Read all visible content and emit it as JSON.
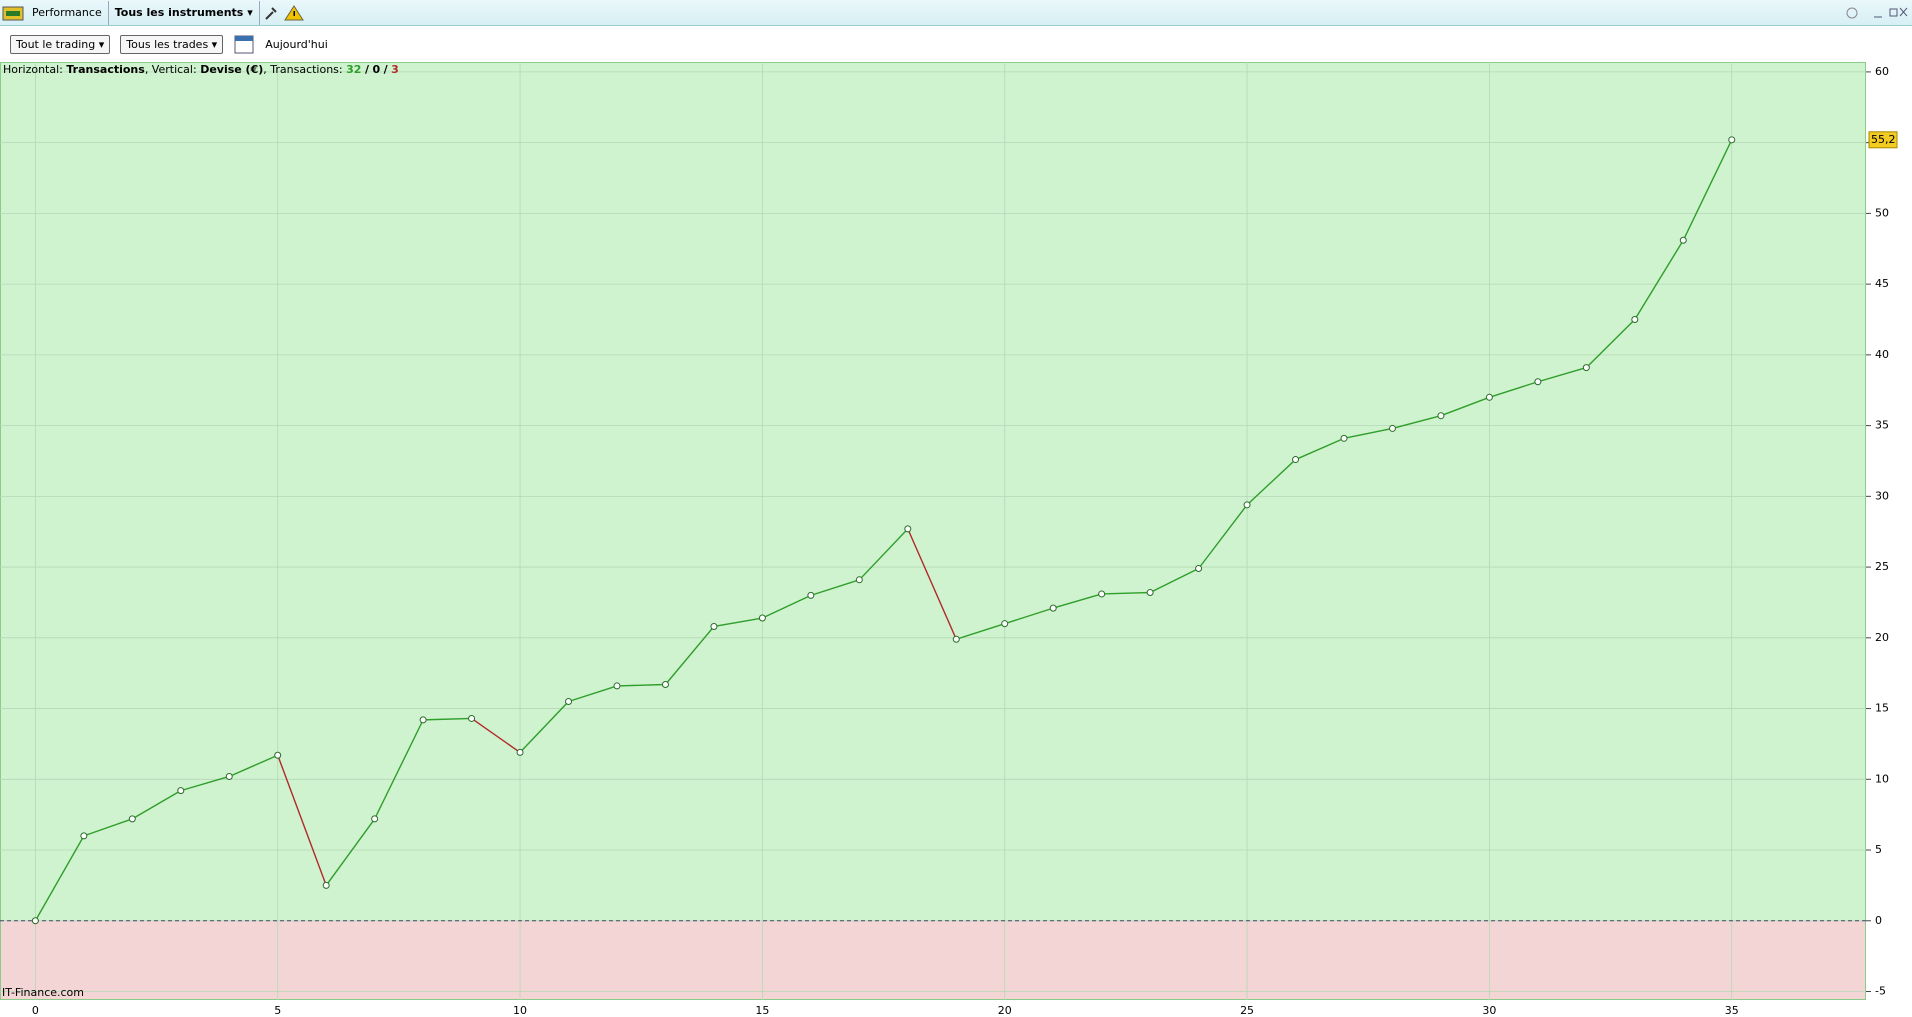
{
  "toolbar": {
    "title": "Performance",
    "instruments": "Tous les instruments"
  },
  "filters": {
    "trading": "Tout le trading",
    "trades": "Tous les trades",
    "date": "Aujourd'hui"
  },
  "info": {
    "horizontal_label": "Horizontal:",
    "horizontal": "Transactions",
    "vertical_label": ", Vertical:",
    "vertical": "Devise (€)",
    "transactions_label": ", Transactions:",
    "wins": 32,
    "separator": "/",
    "even": 0,
    "losses": 3
  },
  "watermark": "IT-Finance.com",
  "chart_data": {
    "type": "line",
    "x": [
      0,
      1,
      2,
      3,
      4,
      5,
      6,
      7,
      8,
      9,
      10,
      11,
      12,
      13,
      14,
      15,
      16,
      17,
      18,
      19,
      20,
      21,
      22,
      23,
      24,
      25,
      26,
      27,
      28,
      29,
      30,
      31,
      32,
      33,
      34,
      35
    ],
    "values": [
      0,
      6.0,
      7.2,
      9.2,
      10.2,
      11.7,
      2.5,
      7.2,
      14.2,
      14.3,
      11.9,
      15.5,
      16.6,
      16.7,
      20.8,
      21.4,
      23.0,
      24.1,
      27.7,
      19.9,
      21.0,
      22.1,
      23.1,
      23.2,
      24.9,
      29.4,
      32.6,
      34.1,
      34.8,
      35.7,
      37.0,
      38.1,
      39.1,
      42.5,
      48.1,
      55.2
    ],
    "value_labels": [
      null,
      null,
      null,
      null,
      null,
      null,
      null,
      null,
      null,
      null,
      null,
      null,
      null,
      null,
      null,
      null,
      null,
      null,
      null,
      null,
      null,
      null,
      null,
      null,
      null,
      null,
      null,
      null,
      null,
      null,
      null,
      null,
      null,
      null,
      null,
      "55,2"
    ],
    "up_color": "#2f9e2a",
    "down_color": "#b02a2a",
    "positive_zone_color": "#cff2cf",
    "negative_zone_color": "#f4d5d5",
    "xlim": [
      -0.73,
      37.77
    ],
    "xticks": [
      0,
      5,
      10,
      15,
      20,
      25,
      30,
      35
    ],
    "ylim": [
      -5.6,
      60.7
    ],
    "yticks": [
      -5,
      0,
      5,
      10,
      15,
      20,
      25,
      30,
      35,
      40,
      45,
      50,
      55,
      60
    ],
    "grid": true
  }
}
